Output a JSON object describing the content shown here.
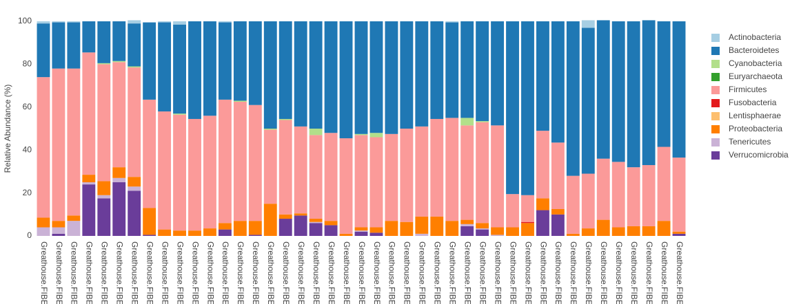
{
  "chart_data": {
    "type": "stacked_bar",
    "y_label": "Relative Abundance (%)",
    "categories": [
      "Greathouse.FIBE",
      "Greathouse.FIBE",
      "Greathouse.FIBE",
      "Greathouse.FIBE",
      "Greathouse.FIBE",
      "Greathouse.FIBE",
      "Greathouse.FIBE",
      "Greathouse.FIBE",
      "Greathouse.FIBE",
      "Greathouse.FIBE",
      "Greathouse.FIBE",
      "Greathouse.FIBE",
      "Greathouse.FIBE",
      "Greathouse.FIBE",
      "Greathouse.FIBE",
      "Greathouse.FIBE",
      "Greathouse.FIBE",
      "Greathouse.FIBE",
      "Greathouse.FIBE",
      "Greathouse.FIBE",
      "Greathouse.FIBE",
      "Greathouse.FIBE",
      "Greathouse.FIBE",
      "Greathouse.FIBE",
      "Greathouse.FIBE",
      "Greathouse.FIBE",
      "Greathouse.FIBE",
      "Greathouse.FIBE",
      "Greathouse.FIBE",
      "Greathouse.FIBE",
      "Greathouse.FIBE",
      "Greathouse.FIBE",
      "Greathouse.FIBE",
      "Greathouse.FIBE",
      "Greathouse.FIBE",
      "Greathouse.FIBE",
      "Greathouse.FIBE",
      "Greathouse.FIBE",
      "Greathouse.FIBE",
      "Greathouse.FIBE",
      "Greathouse.FIBE",
      "Greathouse.FIBE",
      "Greathouse.FIBE"
    ],
    "series": [
      {
        "name": "Actinobacteria",
        "color": "#a6cee3",
        "values": [
          1,
          0.5,
          0.5,
          0,
          0,
          0,
          1.5,
          0,
          0.5,
          1.5,
          0,
          0,
          0.5,
          0,
          0,
          0,
          0,
          0,
          0,
          0,
          0,
          0,
          0,
          0,
          0,
          0,
          0,
          0.5,
          0,
          0,
          0,
          0,
          0,
          0,
          0,
          0,
          3.5,
          0,
          0,
          0,
          0,
          0,
          0
        ]
      },
      {
        "name": "Bacteroidetes",
        "color": "#1f78b4",
        "values": [
          25,
          21.5,
          21.5,
          14.5,
          19.5,
          18.5,
          20,
          36,
          41.5,
          41.5,
          45.5,
          44,
          36,
          37,
          39,
          50,
          45.5,
          49,
          50,
          52,
          54.5,
          52.5,
          52,
          52.5,
          50,
          49,
          45.5,
          44.5,
          45,
          46.5,
          48.5,
          80.5,
          81,
          51,
          56.5,
          72,
          68,
          64.5,
          65.5,
          68,
          67.5,
          58.5,
          63.5
        ]
      },
      {
        "name": "Cyanobacteria",
        "color": "#b2df8a",
        "values": [
          0,
          0,
          0,
          0,
          0.5,
          0.5,
          0.5,
          0,
          0,
          0.5,
          0,
          0,
          0,
          0.5,
          0,
          0.5,
          0.5,
          0,
          3,
          0,
          0,
          0.5,
          2,
          0,
          0,
          0,
          0,
          0,
          3.5,
          0.5,
          0,
          0,
          0,
          0,
          0,
          0,
          0,
          0,
          0,
          0,
          0,
          0,
          0
        ]
      },
      {
        "name": "Euryarchaeota",
        "color": "#33a02c",
        "values": [
          0,
          0,
          0,
          0,
          0,
          0,
          0,
          0,
          0,
          0,
          0,
          0,
          0,
          0,
          0,
          0,
          0,
          0,
          0,
          0,
          0,
          0,
          0,
          0,
          0,
          0,
          0,
          0,
          0,
          0,
          0,
          0,
          0,
          0,
          0,
          0,
          0,
          0,
          0,
          0,
          0,
          0,
          0
        ]
      },
      {
        "name": "Firmicutes",
        "color": "#fb9a99",
        "values": [
          65.5,
          71,
          68.5,
          57,
          54.5,
          49,
          51,
          50.5,
          55,
          54,
          52,
          52.5,
          57.5,
          55.5,
          54,
          34.5,
          44,
          40.5,
          39,
          41,
          44.5,
          43,
          42,
          40.5,
          43.5,
          42,
          45.5,
          48,
          44,
          47,
          47.5,
          15.5,
          12.5,
          31.5,
          31,
          27,
          25.5,
          28.5,
          30.5,
          27.5,
          28.5,
          34.5,
          34.5
        ]
      },
      {
        "name": "Fusobacteria",
        "color": "#e31a1c",
        "values": [
          0,
          0,
          0,
          0,
          0,
          0,
          0,
          0,
          0,
          0,
          0,
          0,
          0,
          0,
          0,
          0,
          0,
          0,
          0,
          0,
          0,
          0,
          0,
          0,
          0,
          0,
          0,
          0,
          0,
          0,
          0,
          0,
          0.5,
          0,
          0,
          0,
          0,
          0,
          0,
          0,
          0,
          0,
          0
        ]
      },
      {
        "name": "Lentisphaerae",
        "color": "#fdbf6f",
        "values": [
          0,
          0,
          0,
          0,
          0,
          0,
          0,
          0,
          0,
          0,
          0,
          0,
          0,
          0,
          0,
          0,
          0,
          0,
          0,
          0,
          0,
          0,
          0,
          0,
          0,
          0,
          0,
          0,
          0,
          0,
          0,
          0,
          0,
          0,
          0,
          0,
          0,
          0,
          0,
          0,
          0,
          0,
          0
        ]
      },
      {
        "name": "Proteobacteria",
        "color": "#ff7f00",
        "values": [
          4.5,
          3,
          2.5,
          3.5,
          6.5,
          5,
          4.5,
          12.5,
          3,
          2.5,
          2.5,
          3.5,
          3,
          7,
          6.5,
          15,
          2,
          1,
          1.5,
          2,
          1,
          1.5,
          2.5,
          7,
          6.5,
          8,
          9,
          7,
          2,
          2.5,
          3.5,
          4,
          6,
          5.5,
          2.5,
          1,
          3.5,
          7.5,
          4,
          4.5,
          4.5,
          7,
          1
        ]
      },
      {
        "name": "Tenericutes",
        "color": "#cab2d6",
        "values": [
          4,
          3,
          7,
          1,
          1.5,
          2,
          2,
          0,
          0,
          0,
          0,
          0,
          0,
          0,
          0,
          0,
          0,
          0,
          0.5,
          0,
          0,
          0.5,
          0,
          0,
          0,
          1,
          0,
          0,
          1,
          0.5,
          0.5,
          0,
          0,
          0,
          0,
          0,
          0,
          0,
          0,
          0,
          0,
          0,
          0
        ]
      },
      {
        "name": "Verrucomicrobia",
        "color": "#6a3d9a",
        "values": [
          0,
          1,
          0,
          24,
          17.5,
          25,
          21,
          0.5,
          0,
          0,
          0,
          0,
          3,
          0,
          0.5,
          0,
          8,
          9.5,
          6,
          5,
          0,
          2,
          1.5,
          0,
          0,
          0,
          0,
          0,
          4.5,
          3,
          0,
          0,
          0,
          12,
          10,
          0,
          0,
          0,
          0,
          0,
          0,
          0,
          1
        ]
      }
    ],
    "ylim": [
      0,
      100
    ],
    "yticks": [
      0,
      20,
      40,
      60,
      80,
      100
    ]
  }
}
